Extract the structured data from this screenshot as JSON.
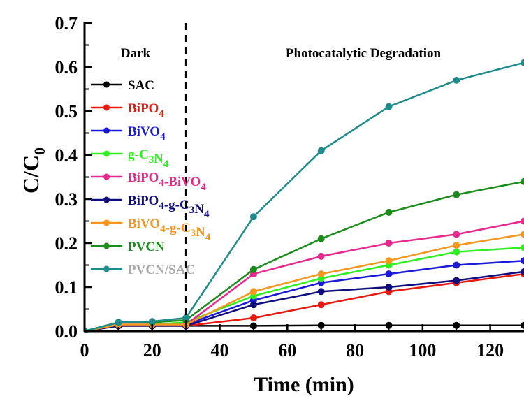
{
  "chart_data": {
    "type": "line",
    "xlabel": "Time (min)",
    "ylabel_main": "C/C",
    "ylabel_sub": "0",
    "xlim": [
      0,
      130
    ],
    "ylim": [
      0,
      0.7
    ],
    "xticks": [
      0,
      20,
      40,
      60,
      80,
      100,
      120
    ],
    "xtick_labels": [
      "0",
      "20",
      "40",
      "60",
      "80",
      "100",
      "120"
    ],
    "yticks": [
      0,
      0.1,
      0.2,
      0.3,
      0.4,
      0.5,
      0.6,
      0.7
    ],
    "ytick_labels": [
      "0.0",
      "0.1",
      "0.2",
      "0.3",
      "0.4",
      "0.5",
      "0.6",
      "0.7"
    ],
    "grid": false,
    "divider_x": 30,
    "region_labels": {
      "dark": "Dark",
      "photo": "Photocatalytic Degradation"
    },
    "legend_placement": "left",
    "x": [
      0,
      10,
      20,
      30,
      50,
      70,
      90,
      110,
      130
    ],
    "series": [
      {
        "name": "SAC",
        "name_parts": [
          {
            "t": "SAC"
          }
        ],
        "color": "#000000",
        "values": [
          0,
          0.012,
          0.012,
          0.012,
          0.012,
          0.013,
          0.013,
          0.013,
          0.013
        ]
      },
      {
        "name": "BiPO4",
        "name_parts": [
          {
            "t": "BiPO"
          },
          {
            "t": "4",
            "sub": true
          }
        ],
        "color": "#e8190f",
        "values": [
          0,
          0.012,
          0.012,
          0.012,
          0.03,
          0.06,
          0.09,
          0.11,
          0.13
        ]
      },
      {
        "name": "BiVO4",
        "name_parts": [
          {
            "t": "BiVO"
          },
          {
            "t": "4",
            "sub": true
          }
        ],
        "color": "#1a1adc",
        "values": [
          0,
          0.015,
          0.015,
          0.015,
          0.07,
          0.11,
          0.13,
          0.15,
          0.16
        ]
      },
      {
        "name": "g-C3N4",
        "name_parts": [
          {
            "t": "g-C"
          },
          {
            "t": "3",
            "sub": true
          },
          {
            "t": "N"
          },
          {
            "t": "4",
            "sub": true
          }
        ],
        "color": "#2ef01e",
        "values": [
          0,
          0.015,
          0.015,
          0.02,
          0.08,
          0.12,
          0.15,
          0.18,
          0.19
        ]
      },
      {
        "name": "BiPO4-BiVO4",
        "name_parts": [
          {
            "t": "BiPO"
          },
          {
            "t": "4",
            "sub": true
          },
          {
            "t": "-BiVO"
          },
          {
            "t": "4",
            "sub": true
          }
        ],
        "color": "#e8288e",
        "values": [
          0,
          0.015,
          0.015,
          0.015,
          0.13,
          0.17,
          0.2,
          0.22,
          0.25
        ]
      },
      {
        "name": "BiPO4-g-C3N4",
        "name_parts": [
          {
            "t": "BiPO"
          },
          {
            "t": "4",
            "sub": true
          },
          {
            "t": "-g-C"
          },
          {
            "t": "3",
            "sub": true
          },
          {
            "t": "N"
          },
          {
            "t": "4",
            "sub": true
          }
        ],
        "color": "#0e0e7e",
        "values": [
          0,
          0.012,
          0.012,
          0.012,
          0.06,
          0.09,
          0.1,
          0.115,
          0.135
        ]
      },
      {
        "name": "BiVO4-g-C3N4",
        "name_parts": [
          {
            "t": "BiVO"
          },
          {
            "t": "4",
            "sub": true
          },
          {
            "t": "-g-C"
          },
          {
            "t": "3",
            "sub": true
          },
          {
            "t": "N"
          },
          {
            "t": "4",
            "sub": true
          }
        ],
        "color": "#f5961e",
        "values": [
          0,
          0.015,
          0.015,
          0.015,
          0.09,
          0.13,
          0.16,
          0.195,
          0.22
        ]
      },
      {
        "name": "PVCN",
        "name_parts": [
          {
            "t": "PVCN"
          }
        ],
        "color": "#1a8c1a",
        "values": [
          0,
          0.02,
          0.02,
          0.025,
          0.14,
          0.21,
          0.27,
          0.31,
          0.34
        ]
      },
      {
        "name": "PVCN/SAC",
        "name_parts": [
          {
            "t": "PVCN/SAC"
          }
        ],
        "color": "#1e8c8c",
        "label_color": "#aaaaaa",
        "values": [
          0,
          0.02,
          0.022,
          0.03,
          0.26,
          0.41,
          0.51,
          0.57,
          0.61
        ]
      }
    ]
  }
}
